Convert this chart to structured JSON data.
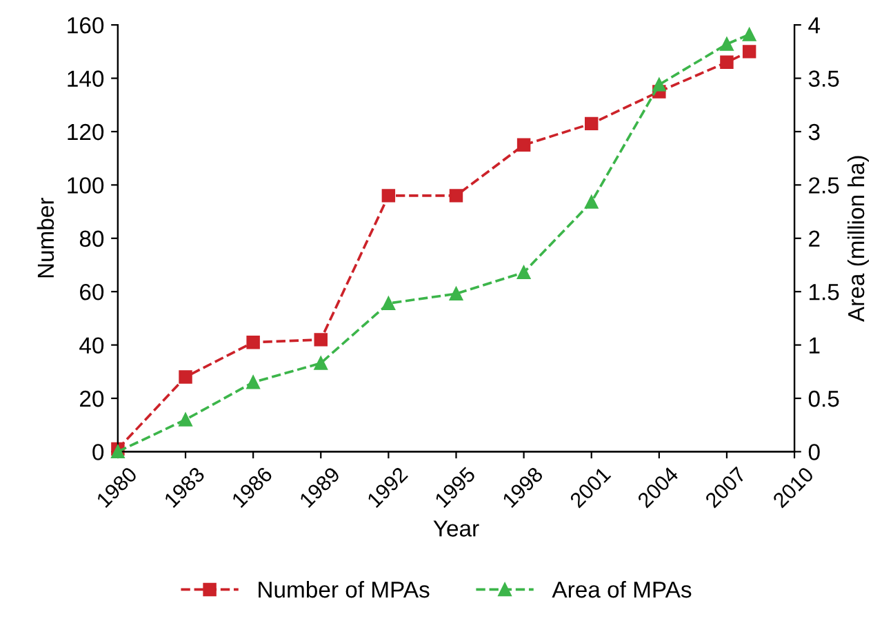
{
  "chart_data": {
    "type": "line",
    "xlabel": "Year",
    "ylabel": "Number",
    "y2label": "Area (million ha)",
    "xlim": [
      1980,
      2010
    ],
    "xticks": [
      1980,
      1983,
      1986,
      1989,
      1992,
      1995,
      1998,
      2001,
      2004,
      2007,
      2010
    ],
    "ylim": [
      0,
      160
    ],
    "yticks": [
      0,
      20,
      40,
      60,
      80,
      100,
      120,
      140,
      160
    ],
    "y2lim": [
      0,
      4
    ],
    "y2ticks": [
      0,
      0.5,
      1,
      1.5,
      2,
      2.5,
      3,
      3.5,
      4
    ],
    "grid": false,
    "legend": "bottom",
    "line_style": "dashed",
    "series": [
      {
        "name": "Number of MPAs",
        "color": "#cc2229",
        "marker": "square",
        "x": [
          1980,
          1983,
          1986,
          1989,
          1992,
          1995,
          1998,
          2001,
          2004,
          2007,
          2008
        ],
        "values": [
          1,
          28,
          41,
          42,
          96,
          96,
          115,
          123,
          135,
          146,
          150
        ]
      },
      {
        "name": "Area of MPAs",
        "color": "#3cb54a",
        "marker": "triangle",
        "axis": "y2",
        "x": [
          1980,
          1983,
          1986,
          1989,
          1992,
          1995,
          1998,
          2001,
          2004,
          2007,
          2008
        ],
        "values": [
          0,
          0.3,
          0.65,
          0.83,
          1.39,
          1.48,
          1.68,
          2.34,
          3.44,
          3.82,
          3.91
        ]
      }
    ]
  }
}
